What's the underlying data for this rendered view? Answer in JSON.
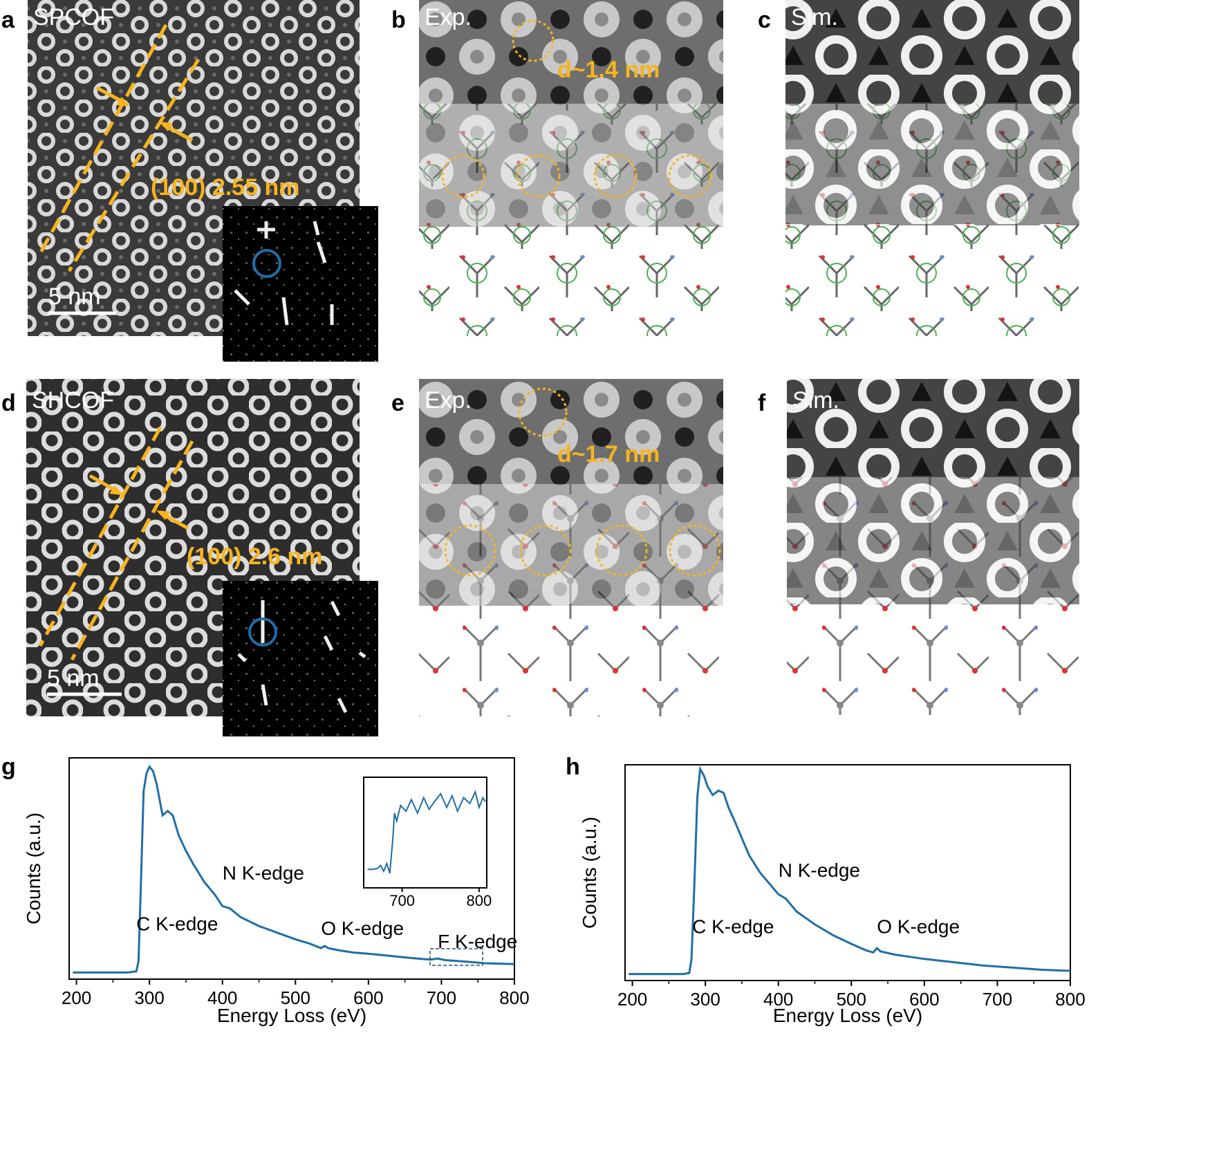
{
  "colors": {
    "orange": "#f7b41c",
    "blue": "#1f6ea6",
    "dark": "#2b2b2b",
    "light": "#e8e8e8"
  },
  "panels": {
    "a": {
      "letter": "a",
      "label": "SPCOF",
      "measure": "(100) 2.55 nm",
      "scale": "5 nm"
    },
    "b": {
      "letter": "b",
      "label": "Exp.",
      "measure": "d~1.4 nm"
    },
    "c": {
      "letter": "c",
      "label": "Sim."
    },
    "d": {
      "letter": "d",
      "label": "SHCOF",
      "measure": "(100) 2.6 nm",
      "scale": "5 nm"
    },
    "e": {
      "letter": "e",
      "label": "Exp.",
      "measure": "d~1.7 nm"
    },
    "f": {
      "letter": "f",
      "label": "Sim."
    },
    "g": {
      "letter": "g"
    },
    "h": {
      "letter": "h"
    }
  },
  "chart_data": [
    {
      "type": "line",
      "panel": "g",
      "xlabel": "Energy Loss (eV)",
      "ylabel": "Counts (a.u.)",
      "xlim": [
        190,
        800
      ],
      "ylim": [
        0,
        100
      ],
      "xticks": [
        200,
        300,
        400,
        500,
        600,
        700,
        800
      ],
      "series": [
        {
          "x": [
            195,
            270,
            282,
            285,
            288,
            292,
            296,
            300,
            305,
            310,
            318,
            325,
            332,
            340,
            350,
            360,
            375,
            390,
            400,
            410,
            425,
            450,
            475,
            500,
            520,
            535,
            540,
            545,
            560,
            580,
            600,
            630,
            660,
            685,
            695,
            705,
            730,
            760,
            800
          ],
          "y": [
            3,
            3,
            3.5,
            8,
            40,
            85,
            93,
            96,
            94,
            88,
            74,
            76,
            74,
            65,
            58,
            52,
            44,
            38,
            33,
            32,
            28,
            24,
            21,
            18,
            16,
            14,
            15,
            14,
            13,
            12,
            11.5,
            10.5,
            9.5,
            8.8,
            9.3,
            8.6,
            8,
            7.2,
            6.8
          ]
        }
      ],
      "annotations": [
        {
          "text": "C K-edge",
          "x": 282,
          "y": 22
        },
        {
          "text": "N K-edge",
          "x": 400,
          "y": 45
        },
        {
          "text": "O K-edge",
          "x": 535,
          "y": 20
        },
        {
          "text": "F K-edge",
          "x": 695,
          "y": 14
        }
      ],
      "inset": {
        "xlim": [
          650,
          810
        ],
        "xticks": [
          700,
          800
        ],
        "series": [
          {
            "x": [
              655,
              662,
              668,
              672,
              676,
              680,
              684,
              688,
              690,
              693,
              698,
              705,
              712,
              720,
              728,
              735,
              742,
              750,
              758,
              765,
              772,
              780,
              788,
              795,
              800,
              805,
              808
            ],
            "y": [
              12,
              12,
              13,
              16,
              10,
              18,
              8,
              45,
              70,
              62,
              78,
              72,
              84,
              70,
              86,
              74,
              82,
              90,
              76,
              88,
              72,
              86,
              80,
              92,
              76,
              86,
              82
            ]
          }
        ]
      }
    },
    {
      "type": "line",
      "panel": "h",
      "xlabel": "Energy Loss (eV)",
      "ylabel": "Counts (a.u.)",
      "xlim": [
        190,
        800
      ],
      "ylim": [
        0,
        100
      ],
      "xticks": [
        200,
        300,
        400,
        500,
        600,
        700,
        800
      ],
      "series": [
        {
          "x": [
            195,
            270,
            278,
            281,
            285,
            289,
            293,
            298,
            303,
            310,
            318,
            325,
            332,
            340,
            350,
            360,
            375,
            390,
            400,
            410,
            425,
            450,
            475,
            500,
            520,
            530,
            535,
            540,
            560,
            580,
            600,
            640,
            680,
            720,
            760,
            800
          ],
          "y": [
            3,
            3,
            3.5,
            10,
            45,
            85,
            98,
            95,
            90,
            86,
            88,
            87,
            80,
            74,
            66,
            58,
            50,
            44,
            40,
            38,
            32,
            26,
            21,
            17,
            14,
            13,
            15,
            13.5,
            12,
            11,
            10,
            8.5,
            7,
            6,
            5,
            4.5
          ]
        }
      ],
      "annotations": [
        {
          "text": "C K-edge",
          "x": 282,
          "y": 22
        },
        {
          "text": "N K-edge",
          "x": 400,
          "y": 48
        },
        {
          "text": "O K-edge",
          "x": 535,
          "y": 22
        }
      ]
    }
  ]
}
